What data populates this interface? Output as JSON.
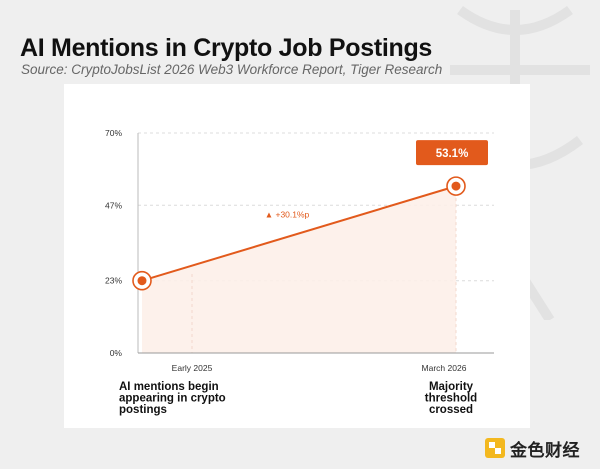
{
  "header": {
    "title": "AI Mentions in Crypto Job Postings",
    "source": "Source: CryptoJobsList 2026 Web3 Workforce Report, Tiger Research"
  },
  "chart_data": {
    "type": "line",
    "x": [
      "Early 2025",
      "March 2026"
    ],
    "series": [
      {
        "values": [
          23,
          53.1
        ]
      }
    ],
    "y_ticks": [
      "0%",
      "23%",
      "47%",
      "70%"
    ],
    "ylim": [
      0,
      70
    ],
    "value_callout": "53.1%",
    "change_label": "▲ +30.1%p",
    "point_descriptions": [
      "AI mentions begin appearing in crypto postings",
      "Majority threshold crossed"
    ],
    "grid": true,
    "accent_color": "#e25a1c",
    "fill_color": "#fdeee7"
  },
  "brand": {
    "text": "金色财经",
    "logo": "golden-square-logo"
  }
}
